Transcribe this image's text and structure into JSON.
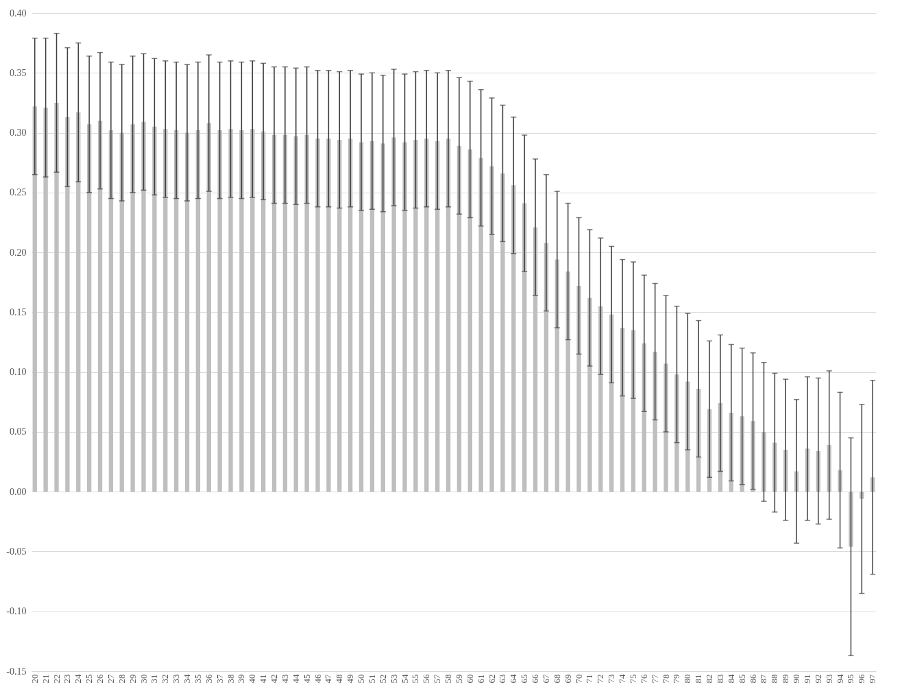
{
  "chart_data": {
    "type": "bar",
    "categories": [
      "20",
      "21",
      "22",
      "23",
      "24",
      "25",
      "26",
      "27",
      "28",
      "29",
      "30",
      "31",
      "32",
      "33",
      "34",
      "35",
      "36",
      "37",
      "38",
      "39",
      "40",
      "41",
      "42",
      "43",
      "44",
      "45",
      "46",
      "47",
      "48",
      "49",
      "50",
      "51",
      "52",
      "53",
      "54",
      "55",
      "56",
      "57",
      "58",
      "59",
      "60",
      "61",
      "62",
      "63",
      "64",
      "65",
      "66",
      "67",
      "68",
      "69",
      "70",
      "71",
      "72",
      "73",
      "74",
      "75",
      "76",
      "77",
      "78",
      "79",
      "80",
      "81",
      "82",
      "83",
      "84",
      "85",
      "86",
      "87",
      "88",
      "89",
      "90",
      "91",
      "92",
      "93",
      "94",
      "95",
      "96",
      "97"
    ],
    "values": [
      0.322,
      0.321,
      0.325,
      0.313,
      0.317,
      0.307,
      0.31,
      0.302,
      0.3,
      0.307,
      0.309,
      0.305,
      0.303,
      0.302,
      0.3,
      0.302,
      0.308,
      0.302,
      0.303,
      0.302,
      0.303,
      0.301,
      0.298,
      0.298,
      0.297,
      0.298,
      0.295,
      0.295,
      0.294,
      0.295,
      0.292,
      0.293,
      0.291,
      0.296,
      0.292,
      0.294,
      0.295,
      0.293,
      0.295,
      0.289,
      0.286,
      0.279,
      0.272,
      0.266,
      0.256,
      0.241,
      0.221,
      0.208,
      0.194,
      0.184,
      0.172,
      0.162,
      0.155,
      0.148,
      0.137,
      0.135,
      0.124,
      0.117,
      0.107,
      0.098,
      0.092,
      0.086,
      0.069,
      0.074,
      0.066,
      0.063,
      0.059,
      0.05,
      0.041,
      0.035,
      0.017,
      0.036,
      0.034,
      0.039,
      0.018,
      -0.046,
      -0.006,
      0.012
    ],
    "errors": [
      0.057,
      0.058,
      0.058,
      0.058,
      0.058,
      0.057,
      0.057,
      0.057,
      0.057,
      0.057,
      0.057,
      0.057,
      0.057,
      0.057,
      0.057,
      0.057,
      0.057,
      0.057,
      0.057,
      0.057,
      0.057,
      0.057,
      0.057,
      0.057,
      0.057,
      0.057,
      0.057,
      0.057,
      0.057,
      0.057,
      0.057,
      0.057,
      0.057,
      0.057,
      0.057,
      0.057,
      0.057,
      0.057,
      0.057,
      0.057,
      0.057,
      0.057,
      0.057,
      0.057,
      0.057,
      0.057,
      0.057,
      0.057,
      0.057,
      0.057,
      0.057,
      0.057,
      0.057,
      0.057,
      0.057,
      0.057,
      0.057,
      0.057,
      0.057,
      0.057,
      0.057,
      0.057,
      0.057,
      0.057,
      0.057,
      0.057,
      0.057,
      0.058,
      0.058,
      0.059,
      0.06,
      0.06,
      0.061,
      0.062,
      0.065,
      0.091,
      0.079,
      0.081
    ],
    "color": "#bfbfbf",
    "ylim": [
      -0.15,
      0.4
    ],
    "yticks": [
      {
        "value": -0.15,
        "label": "-0.15"
      },
      {
        "value": -0.1,
        "label": "-0.10"
      },
      {
        "value": -0.05,
        "label": "-0.05"
      },
      {
        "value": 0,
        "label": "0.00"
      },
      {
        "value": 0.05,
        "label": "0.05"
      },
      {
        "value": 0.1,
        "label": "0.10"
      },
      {
        "value": 0.15,
        "label": "0.15"
      },
      {
        "value": 0.2,
        "label": "0.20"
      },
      {
        "value": 0.25,
        "label": "0.25"
      },
      {
        "value": 0.3,
        "label": "0.30"
      },
      {
        "value": 0.35,
        "label": "0.35"
      },
      {
        "value": 0.4,
        "label": "0.40"
      }
    ],
    "grid": "y"
  }
}
